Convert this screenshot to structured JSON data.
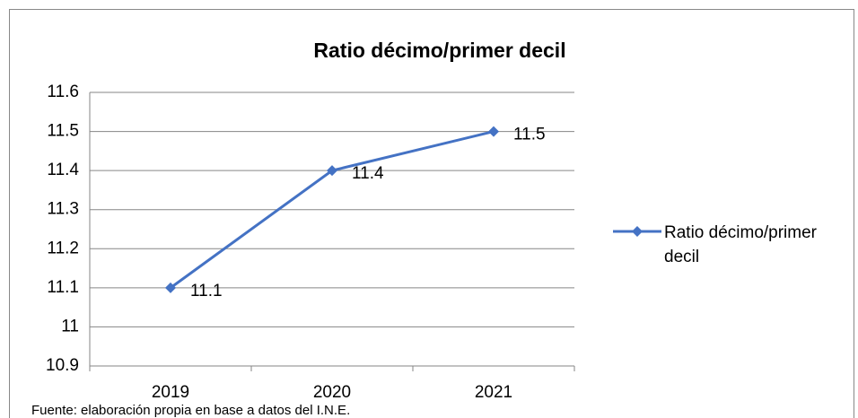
{
  "chart_data": {
    "type": "line",
    "title": "Ratio décimo/primer decil",
    "categories": [
      "2019",
      "2020",
      "2021"
    ],
    "series": [
      {
        "name": "Ratio décimo/primer decil",
        "color": "#4472c4",
        "values": [
          11.1,
          11.4,
          11.5
        ]
      }
    ],
    "ylim": [
      10.9,
      11.6
    ],
    "yticks": [
      10.9,
      11,
      11.1,
      11.2,
      11.3,
      11.4,
      11.5,
      11.6
    ],
    "grid": true,
    "legend": "right",
    "data_labels": true
  },
  "source": "Fuente: elaboración propia en base a datos del I.N.E."
}
